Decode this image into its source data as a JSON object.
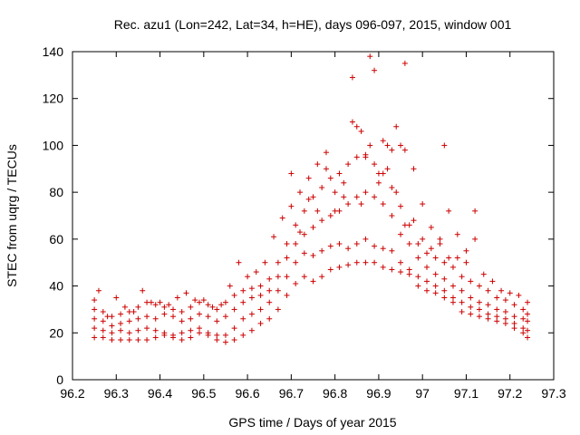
{
  "chart_data": {
    "type": "scatter",
    "title": "Rec. azu1 (Lon=242, Lat=34, h=HE), days 096-097, 2015, window 001",
    "xlabel": "GPS time / Days of year 2015",
    "ylabel": "STEC from uqrg / TECUs",
    "xlim": [
      96.2,
      97.3
    ],
    "ylim": [
      0,
      140
    ],
    "xticks": [
      96.2,
      96.3,
      96.4,
      96.5,
      96.6,
      96.7,
      96.8,
      96.9,
      97.0,
      97.1,
      97.2,
      97.3
    ],
    "xtick_labels": [
      "96.2",
      "96.3",
      "96.4",
      "96.5",
      "96.6",
      "96.7",
      "96.8",
      "96.9",
      "97",
      "97.1",
      "97.2",
      "97.3"
    ],
    "yticks": [
      0,
      20,
      40,
      60,
      80,
      100,
      120,
      140
    ],
    "ytick_labels": [
      "0",
      "20",
      "40",
      "60",
      "80",
      "100",
      "120",
      "140"
    ],
    "marker": "+",
    "grid": false,
    "series": [
      {
        "name": "STEC",
        "color": "#cc0000",
        "points": [
          [
            96.25,
            18
          ],
          [
            96.27,
            18
          ],
          [
            96.29,
            17
          ],
          [
            96.31,
            17
          ],
          [
            96.33,
            17
          ],
          [
            96.35,
            17
          ],
          [
            96.37,
            17
          ],
          [
            96.39,
            18
          ],
          [
            96.41,
            19
          ],
          [
            96.43,
            18
          ],
          [
            96.45,
            17
          ],
          [
            96.47,
            18
          ],
          [
            96.49,
            20
          ],
          [
            96.51,
            19
          ],
          [
            96.53,
            17
          ],
          [
            96.55,
            16
          ],
          [
            96.57,
            17
          ],
          [
            96.59,
            19
          ],
          [
            96.61,
            21
          ],
          [
            96.63,
            24
          ],
          [
            96.65,
            26
          ],
          [
            96.67,
            30
          ],
          [
            96.69,
            36
          ],
          [
            96.71,
            41
          ],
          [
            96.73,
            44
          ],
          [
            96.75,
            42
          ],
          [
            96.77,
            44
          ],
          [
            96.79,
            47
          ],
          [
            96.81,
            48
          ],
          [
            96.83,
            49
          ],
          [
            96.85,
            50
          ],
          [
            96.87,
            50
          ],
          [
            96.89,
            50
          ],
          [
            96.91,
            48
          ],
          [
            96.93,
            47
          ],
          [
            96.95,
            46
          ],
          [
            96.97,
            45
          ],
          [
            96.99,
            40
          ],
          [
            97.01,
            38
          ],
          [
            97.03,
            37
          ],
          [
            97.05,
            35
          ],
          [
            97.07,
            33
          ],
          [
            97.09,
            29
          ],
          [
            97.11,
            28
          ],
          [
            97.13,
            27
          ],
          [
            97.15,
            26
          ],
          [
            97.17,
            25
          ],
          [
            97.19,
            24
          ],
          [
            97.21,
            22
          ],
          [
            97.23,
            20
          ],
          [
            97.24,
            18
          ],
          [
            96.25,
            22
          ],
          [
            96.27,
            21
          ],
          [
            96.29,
            20
          ],
          [
            96.31,
            21
          ],
          [
            96.33,
            20
          ],
          [
            96.35,
            21
          ],
          [
            96.37,
            22
          ],
          [
            96.39,
            21
          ],
          [
            96.41,
            20
          ],
          [
            96.43,
            19
          ],
          [
            96.45,
            20
          ],
          [
            96.47,
            21
          ],
          [
            96.49,
            22
          ],
          [
            96.51,
            20
          ],
          [
            96.53,
            19
          ],
          [
            96.55,
            19
          ],
          [
            96.57,
            22
          ],
          [
            96.59,
            26
          ],
          [
            96.61,
            28
          ],
          [
            96.63,
            30
          ],
          [
            96.65,
            33
          ],
          [
            96.67,
            38
          ],
          [
            96.69,
            44
          ],
          [
            96.71,
            50
          ],
          [
            96.73,
            54
          ],
          [
            96.75,
            53
          ],
          [
            96.77,
            55
          ],
          [
            96.79,
            57
          ],
          [
            96.81,
            58
          ],
          [
            96.83,
            56
          ],
          [
            96.85,
            58
          ],
          [
            96.87,
            60
          ],
          [
            96.89,
            57
          ],
          [
            96.91,
            56
          ],
          [
            96.93,
            55
          ],
          [
            96.95,
            50
          ],
          [
            96.97,
            47
          ],
          [
            96.99,
            44
          ],
          [
            97.01,
            42
          ],
          [
            97.03,
            40
          ],
          [
            97.05,
            38
          ],
          [
            97.07,
            35
          ],
          [
            97.09,
            33
          ],
          [
            97.11,
            31
          ],
          [
            97.13,
            30
          ],
          [
            97.15,
            28
          ],
          [
            97.17,
            27
          ],
          [
            97.19,
            26
          ],
          [
            97.21,
            24
          ],
          [
            97.23,
            22
          ],
          [
            97.24,
            21
          ],
          [
            96.25,
            26
          ],
          [
            96.27,
            25
          ],
          [
            96.29,
            23
          ],
          [
            96.31,
            24
          ],
          [
            96.33,
            25
          ],
          [
            96.35,
            26
          ],
          [
            96.37,
            27
          ],
          [
            96.39,
            26
          ],
          [
            96.41,
            28
          ],
          [
            96.43,
            27
          ],
          [
            96.45,
            25
          ],
          [
            96.47,
            26
          ],
          [
            96.49,
            28
          ],
          [
            96.51,
            27
          ],
          [
            96.53,
            25
          ],
          [
            96.55,
            27
          ],
          [
            96.57,
            30
          ],
          [
            96.59,
            33
          ],
          [
            96.61,
            35
          ],
          [
            96.63,
            36
          ],
          [
            96.65,
            38
          ],
          [
            96.67,
            44
          ],
          [
            96.69,
            52
          ],
          [
            96.71,
            58
          ],
          [
            96.73,
            62
          ],
          [
            96.75,
            65
          ],
          [
            96.77,
            68
          ],
          [
            96.79,
            70
          ],
          [
            96.81,
            72
          ],
          [
            96.83,
            75
          ],
          [
            96.85,
            78
          ],
          [
            96.87,
            80
          ],
          [
            96.89,
            78
          ],
          [
            96.91,
            75
          ],
          [
            96.93,
            70
          ],
          [
            96.95,
            62
          ],
          [
            96.97,
            58
          ],
          [
            96.99,
            52
          ],
          [
            97.01,
            48
          ],
          [
            97.03,
            45
          ],
          [
            97.05,
            43
          ],
          [
            97.07,
            40
          ],
          [
            97.09,
            38
          ],
          [
            97.11,
            35
          ],
          [
            97.13,
            33
          ],
          [
            97.15,
            32
          ],
          [
            97.17,
            30
          ],
          [
            97.19,
            29
          ],
          [
            97.21,
            27
          ],
          [
            97.23,
            26
          ],
          [
            97.24,
            25
          ],
          [
            96.25,
            30
          ],
          [
            96.27,
            29
          ],
          [
            96.29,
            27
          ],
          [
            96.31,
            28
          ],
          [
            96.33,
            29
          ],
          [
            96.35,
            31
          ],
          [
            96.37,
            33
          ],
          [
            96.39,
            32
          ],
          [
            96.41,
            31
          ],
          [
            96.43,
            30
          ],
          [
            96.45,
            29
          ],
          [
            96.47,
            31
          ],
          [
            96.49,
            33
          ],
          [
            96.51,
            32
          ],
          [
            96.53,
            30
          ],
          [
            96.55,
            33
          ],
          [
            96.57,
            36
          ],
          [
            96.59,
            38
          ],
          [
            96.61,
            39
          ],
          [
            96.63,
            40
          ],
          [
            96.65,
            43
          ],
          [
            96.67,
            50
          ],
          [
            96.69,
            58
          ],
          [
            96.71,
            66
          ],
          [
            96.73,
            72
          ],
          [
            96.75,
            78
          ],
          [
            96.77,
            82
          ],
          [
            96.79,
            86
          ],
          [
            96.81,
            88
          ],
          [
            96.83,
            92
          ],
          [
            96.85,
            95
          ],
          [
            96.87,
            96
          ],
          [
            96.89,
            92
          ],
          [
            96.91,
            88
          ],
          [
            96.93,
            82
          ],
          [
            96.95,
            74
          ],
          [
            96.97,
            66
          ],
          [
            96.99,
            58
          ],
          [
            97.01,
            54
          ],
          [
            97.03,
            52
          ],
          [
            97.05,
            50
          ],
          [
            97.07,
            48
          ],
          [
            97.09,
            44
          ],
          [
            97.11,
            42
          ],
          [
            97.13,
            40
          ],
          [
            97.15,
            38
          ],
          [
            97.17,
            35
          ],
          [
            97.19,
            34
          ],
          [
            97.21,
            32
          ],
          [
            97.23,
            30
          ],
          [
            97.24,
            28
          ],
          [
            96.25,
            34
          ],
          [
            96.26,
            38
          ],
          [
            96.28,
            27
          ],
          [
            96.3,
            35
          ],
          [
            96.32,
            31
          ],
          [
            96.34,
            29
          ],
          [
            96.36,
            38
          ],
          [
            96.38,
            33
          ],
          [
            96.4,
            33
          ],
          [
            96.42,
            32
          ],
          [
            96.44,
            35
          ],
          [
            96.46,
            37
          ],
          [
            96.48,
            34
          ],
          [
            96.5,
            34
          ],
          [
            96.52,
            31
          ],
          [
            96.54,
            32
          ],
          [
            96.56,
            40
          ],
          [
            96.58,
            50
          ],
          [
            96.6,
            44
          ],
          [
            96.62,
            46
          ],
          [
            96.64,
            50
          ],
          [
            96.66,
            61
          ],
          [
            96.68,
            69
          ],
          [
            96.7,
            88
          ],
          [
            96.72,
            63
          ],
          [
            96.74,
            86
          ],
          [
            96.76,
            92
          ],
          [
            96.78,
            90
          ],
          [
            96.8,
            80
          ],
          [
            96.82,
            84
          ],
          [
            96.84,
            110
          ],
          [
            96.86,
            106
          ],
          [
            96.88,
            100
          ],
          [
            96.9,
            88
          ],
          [
            96.92,
            100
          ],
          [
            96.94,
            108
          ],
          [
            96.96,
            98
          ],
          [
            96.98,
            90
          ],
          [
            97.0,
            75
          ],
          [
            97.02,
            65
          ],
          [
            97.04,
            60
          ],
          [
            97.06,
            72
          ],
          [
            97.08,
            62
          ],
          [
            97.1,
            55
          ],
          [
            97.12,
            60
          ],
          [
            97.14,
            45
          ],
          [
            97.16,
            42
          ],
          [
            97.18,
            38
          ],
          [
            97.2,
            37
          ],
          [
            97.22,
            36
          ],
          [
            97.24,
            33
          ],
          [
            96.84,
            129
          ],
          [
            96.88,
            138
          ],
          [
            96.89,
            132
          ],
          [
            96.96,
            135
          ],
          [
            97.05,
            100
          ],
          [
            96.85,
            108
          ],
          [
            96.91,
            102
          ],
          [
            96.87,
            95
          ],
          [
            96.93,
            98
          ],
          [
            96.95,
            100
          ],
          [
            96.78,
            97
          ],
          [
            96.8,
            72
          ],
          [
            96.82,
            78
          ],
          [
            96.86,
            75
          ],
          [
            96.9,
            84
          ],
          [
            96.92,
            90
          ],
          [
            96.94,
            80
          ],
          [
            96.96,
            66
          ],
          [
            96.98,
            68
          ],
          [
            97.0,
            60
          ],
          [
            97.02,
            56
          ],
          [
            97.04,
            58
          ],
          [
            97.06,
            52
          ],
          [
            97.08,
            52
          ],
          [
            97.1,
            50
          ],
          [
            97.12,
            72
          ],
          [
            96.74,
            77
          ],
          [
            96.76,
            72
          ],
          [
            96.72,
            80
          ],
          [
            96.7,
            74
          ]
        ]
      }
    ]
  }
}
